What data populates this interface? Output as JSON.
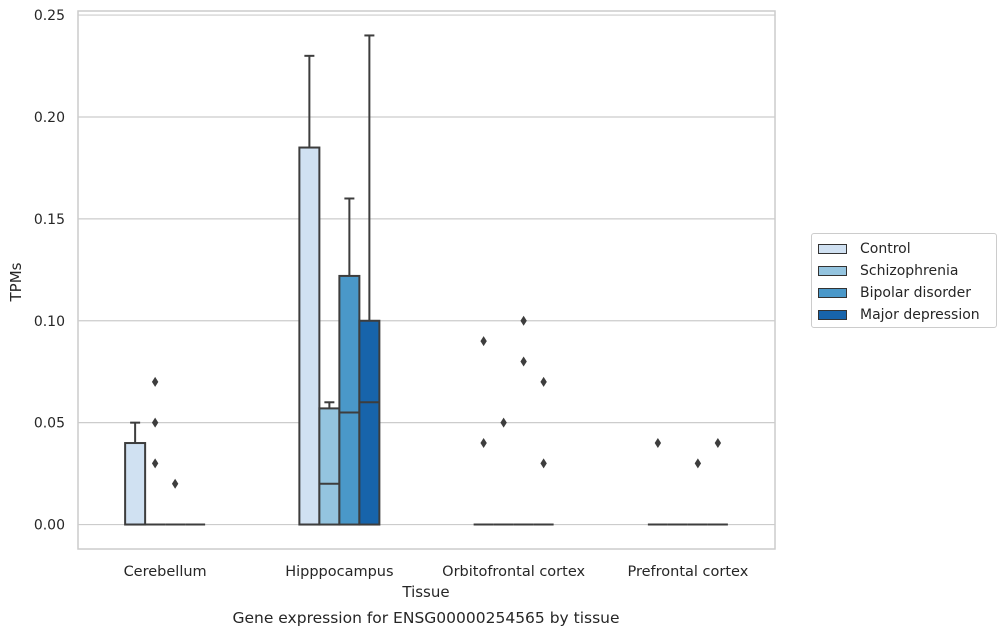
{
  "chart_data": {
    "type": "box",
    "title": "Gene expression for ENSG00000254565 by tissue",
    "xlabel": "Tissue",
    "ylabel": "TPMs",
    "ylim": [
      -0.012,
      0.252
    ],
    "yticks": [
      "0.00",
      "0.05",
      "0.10",
      "0.15",
      "0.20",
      "0.25"
    ],
    "ytick_values": [
      0.0,
      0.05,
      0.1,
      0.15,
      0.2,
      0.25
    ],
    "grid": true,
    "legend_position": "right",
    "categories": [
      "Cerebellum",
      "Hipppocampus",
      "Orbitofrontal cortex",
      "Prefrontal cortex"
    ],
    "series": [
      {
        "name": "Control",
        "color": "#d0e1f2",
        "boxes": [
          {
            "q1": 0.0,
            "median": 0.0,
            "q3": 0.04,
            "whisker_low": 0.0,
            "whisker_high": 0.05,
            "outliers": []
          },
          {
            "q1": 0.0,
            "median": 0.0,
            "q3": 0.185,
            "whisker_low": 0.0,
            "whisker_high": 0.23,
            "outliers": []
          },
          {
            "q1": 0.0,
            "median": 0.0,
            "q3": 0.0,
            "whisker_low": 0.0,
            "whisker_high": 0.0,
            "outliers": [
              0.04,
              0.09
            ]
          },
          {
            "q1": 0.0,
            "median": 0.0,
            "q3": 0.0,
            "whisker_low": 0.0,
            "whisker_high": 0.0,
            "outliers": [
              0.04
            ]
          }
        ]
      },
      {
        "name": "Schizophrenia",
        "color": "#94c4df",
        "boxes": [
          {
            "q1": 0.0,
            "median": 0.0,
            "q3": 0.0,
            "whisker_low": 0.0,
            "whisker_high": 0.0,
            "outliers": [
              0.03,
              0.05,
              0.07
            ]
          },
          {
            "q1": 0.0,
            "median": 0.02,
            "q3": 0.057,
            "whisker_low": 0.0,
            "whisker_high": 0.06,
            "outliers": []
          },
          {
            "q1": 0.0,
            "median": 0.0,
            "q3": 0.0,
            "whisker_low": 0.0,
            "whisker_high": 0.0,
            "outliers": [
              0.05
            ]
          },
          {
            "q1": 0.0,
            "median": 0.0,
            "q3": 0.0,
            "whisker_low": 0.0,
            "whisker_high": 0.0,
            "outliers": []
          }
        ]
      },
      {
        "name": "Bipolar disorder",
        "color": "#4a98c9",
        "boxes": [
          {
            "q1": 0.0,
            "median": 0.0,
            "q3": 0.0,
            "whisker_low": 0.0,
            "whisker_high": 0.0,
            "outliers": [
              0.02
            ]
          },
          {
            "q1": 0.0,
            "median": 0.055,
            "q3": 0.122,
            "whisker_low": 0.0,
            "whisker_high": 0.16,
            "outliers": []
          },
          {
            "q1": 0.0,
            "median": 0.0,
            "q3": 0.0,
            "whisker_low": 0.0,
            "whisker_high": 0.0,
            "outliers": [
              0.08,
              0.1
            ]
          },
          {
            "q1": 0.0,
            "median": 0.0,
            "q3": 0.0,
            "whisker_low": 0.0,
            "whisker_high": 0.0,
            "outliers": [
              0.03
            ]
          }
        ]
      },
      {
        "name": "Major depression",
        "color": "#1764ab",
        "boxes": [
          {
            "q1": 0.0,
            "median": 0.0,
            "q3": 0.0,
            "whisker_low": 0.0,
            "whisker_high": 0.0,
            "outliers": []
          },
          {
            "q1": 0.0,
            "median": 0.06,
            "q3": 0.1,
            "whisker_low": 0.0,
            "whisker_high": 0.24,
            "outliers": []
          },
          {
            "q1": 0.0,
            "median": 0.0,
            "q3": 0.0,
            "whisker_low": 0.0,
            "whisker_high": 0.0,
            "outliers": [
              0.03,
              0.07
            ]
          },
          {
            "q1": 0.0,
            "median": 0.0,
            "q3": 0.0,
            "whisker_low": 0.0,
            "whisker_high": 0.0,
            "outliers": [
              0.04
            ]
          }
        ]
      }
    ]
  }
}
